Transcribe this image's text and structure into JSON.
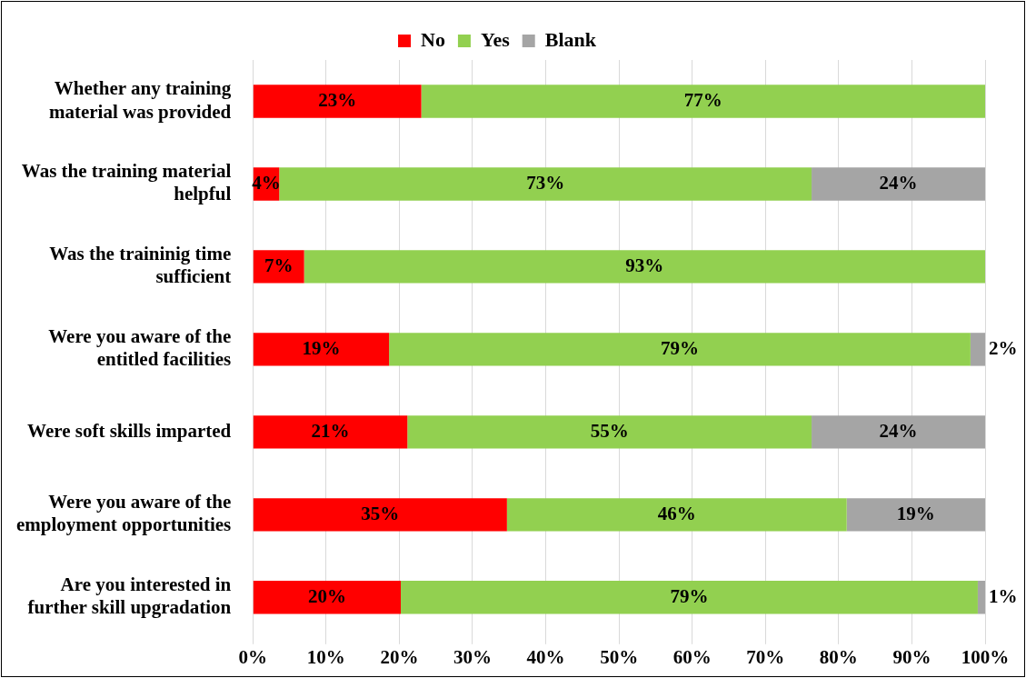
{
  "chart_data": {
    "type": "bar",
    "orientation": "horizontal",
    "stacked": true,
    "categories": [
      "Whether any training material was provided",
      "Was the training material helpful",
      "Was the traininig time sufficient",
      "Were you aware of the entitled facilities",
      "Were soft skills imparted",
      "Were you aware of the employment opportunities",
      "Are you interested in further skill upgradation"
    ],
    "series": [
      {
        "name": "No",
        "color": "#ff0000",
        "values": [
          23,
          3.6,
          7,
          18.6,
          21.1,
          34.7,
          20.2
        ],
        "value_labels": [
          "23%",
          "4%",
          "7%",
          "19%",
          "21%",
          "35%",
          "20%"
        ]
      },
      {
        "name": "Yes",
        "color": "#92d050",
        "values": [
          77,
          72.7,
          93,
          79.4,
          55.2,
          46.4,
          78.8
        ],
        "value_labels": [
          "77%",
          "73%",
          "93%",
          "79%",
          "55%",
          "46%",
          "79%"
        ]
      },
      {
        "name": "Blank",
        "color": "#a5a5a5",
        "values": [
          null,
          23.7,
          null,
          2.0,
          23.7,
          18.9,
          1.0
        ],
        "value_labels": [
          null,
          "24%",
          null,
          "2%",
          "24%",
          "19%",
          "1%"
        ]
      }
    ],
    "xlim": [
      0,
      100
    ],
    "xticks": [
      {
        "value": 0,
        "label": "0%"
      },
      {
        "value": 10,
        "label": "10%"
      },
      {
        "value": 20,
        "label": "20%"
      },
      {
        "value": 30,
        "label": "30%"
      },
      {
        "value": 40,
        "label": "40%"
      },
      {
        "value": 50,
        "label": "50%"
      },
      {
        "value": 60,
        "label": "60%"
      },
      {
        "value": 70,
        "label": "70%"
      },
      {
        "value": 80,
        "label": "80%"
      },
      {
        "value": 90,
        "label": "90%"
      },
      {
        "value": 100,
        "label": "100%"
      }
    ],
    "grid": "x",
    "legend": "top"
  }
}
